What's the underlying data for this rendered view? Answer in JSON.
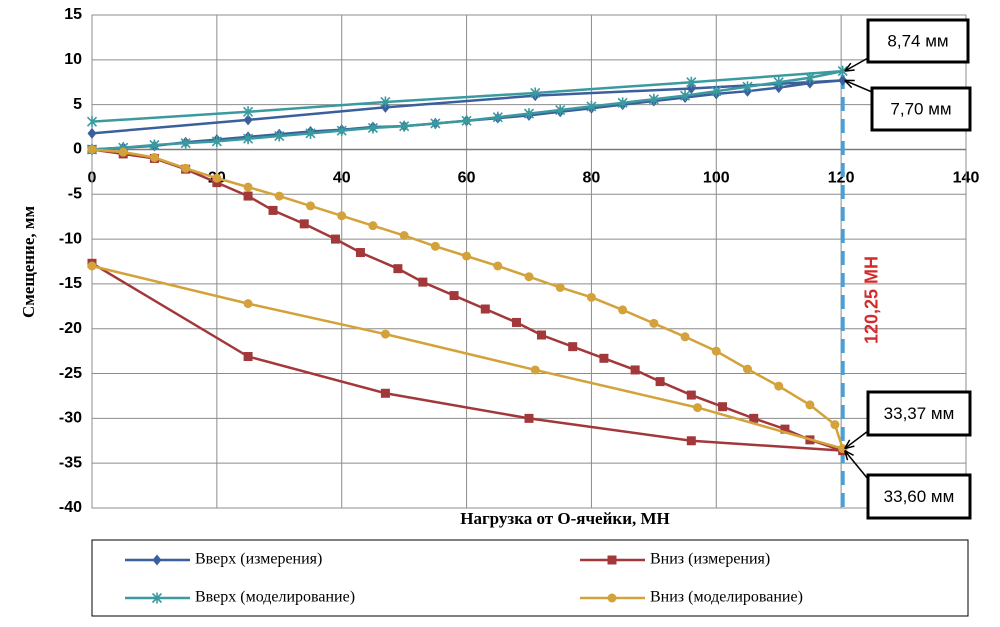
{
  "chart_data": {
    "type": "line",
    "x_label": "Нагрузка от О-ячейки, МН",
    "y_label": "Смещение, мм",
    "xlim": [
      0,
      140
    ],
    "xticks": [
      0,
      20,
      40,
      60,
      80,
      100,
      120,
      140
    ],
    "ylim": [
      -40,
      15
    ],
    "yticks": [
      15,
      10,
      5,
      0,
      -5,
      -10,
      -15,
      -20,
      -25,
      -30,
      -35,
      -40
    ],
    "grid": true,
    "series": [
      {
        "name": "Вверх (измерения)",
        "color": "#3b5f9c",
        "marker": "diamond",
        "x": [
          0,
          5,
          10,
          15,
          20,
          25,
          30,
          35,
          40,
          45,
          50,
          55,
          60,
          65,
          70,
          75,
          80,
          85,
          90,
          95,
          100,
          105,
          110,
          115,
          120.25,
          96,
          71,
          47,
          25,
          0
        ],
        "values": [
          0,
          0.2,
          0.4,
          0.8,
          1.1,
          1.4,
          1.7,
          2.0,
          2.2,
          2.5,
          2.6,
          2.9,
          3.2,
          3.5,
          3.8,
          4.2,
          4.6,
          5.0,
          5.4,
          5.8,
          6.2,
          6.5,
          6.9,
          7.4,
          7.7,
          6.8,
          6.0,
          4.7,
          3.3,
          1.8
        ]
      },
      {
        "name": "Вниз (измерения)",
        "color": "#a3383b",
        "marker": "square",
        "x": [
          0,
          5,
          10,
          15,
          20,
          25,
          29,
          34,
          39,
          43,
          49,
          53,
          58,
          63,
          68,
          72,
          77,
          82,
          87,
          91,
          96,
          101,
          106,
          111,
          115,
          120.25,
          96,
          70,
          47,
          25,
          0
        ],
        "values": [
          0,
          -0.5,
          -1.0,
          -2.2,
          -3.7,
          -5.2,
          -6.8,
          -8.3,
          -10.0,
          -11.5,
          -13.3,
          -14.8,
          -16.3,
          -17.8,
          -19.3,
          -20.7,
          -22.0,
          -23.3,
          -24.6,
          -25.9,
          -27.4,
          -28.7,
          -30.0,
          -31.2,
          -32.4,
          -33.6,
          -32.5,
          -30.0,
          -27.2,
          -23.1,
          -12.7
        ]
      },
      {
        "name": "Вверх (моделирование)",
        "color": "#3a9aa0",
        "marker": "star",
        "x": [
          0,
          5,
          10,
          15,
          20,
          25,
          30,
          35,
          40,
          45,
          50,
          55,
          60,
          65,
          70,
          75,
          80,
          85,
          90,
          95,
          100,
          105,
          110,
          115,
          120.25,
          96,
          71,
          47,
          25,
          0
        ],
        "values": [
          0,
          0.2,
          0.5,
          0.7,
          0.9,
          1.2,
          1.5,
          1.8,
          2.1,
          2.4,
          2.6,
          2.9,
          3.2,
          3.6,
          4.0,
          4.4,
          4.8,
          5.2,
          5.6,
          6.0,
          6.5,
          7.0,
          7.5,
          8.0,
          8.74,
          7.5,
          6.3,
          5.3,
          4.2,
          3.1
        ]
      },
      {
        "name": "Вниз (моделирование)",
        "color": "#d4a23a",
        "marker": "circle",
        "x": [
          0,
          5,
          10,
          15,
          20,
          25,
          30,
          35,
          40,
          45,
          50,
          55,
          60,
          65,
          70,
          75,
          80,
          85,
          90,
          95,
          100,
          105,
          110,
          115,
          119,
          120.25,
          97,
          71,
          47,
          25,
          0
        ],
        "values": [
          0,
          -0.3,
          -0.9,
          -2.1,
          -3.2,
          -4.2,
          -5.2,
          -6.3,
          -7.4,
          -8.5,
          -9.6,
          -10.8,
          -11.9,
          -13.0,
          -14.2,
          -15.4,
          -16.5,
          -17.9,
          -19.4,
          -20.9,
          -22.5,
          -24.5,
          -26.4,
          -28.5,
          -30.7,
          -33.37,
          -28.8,
          -24.6,
          -20.6,
          -17.2,
          -13.0
        ]
      }
    ],
    "vline": {
      "x": 120.25,
      "label": "120,25 МН",
      "color": "#4a9fd4",
      "label_color": "#d42a2a"
    },
    "annotations": [
      {
        "text": "8,74 мм",
        "x": 120.25,
        "y": 8.74
      },
      {
        "text": "7,70 мм",
        "x": 120.25,
        "y": 7.7
      },
      {
        "text": "33,37 мм",
        "x": 120.25,
        "y": -33.37
      },
      {
        "text": "33,60 мм",
        "x": 120.25,
        "y": -33.6
      }
    ]
  }
}
